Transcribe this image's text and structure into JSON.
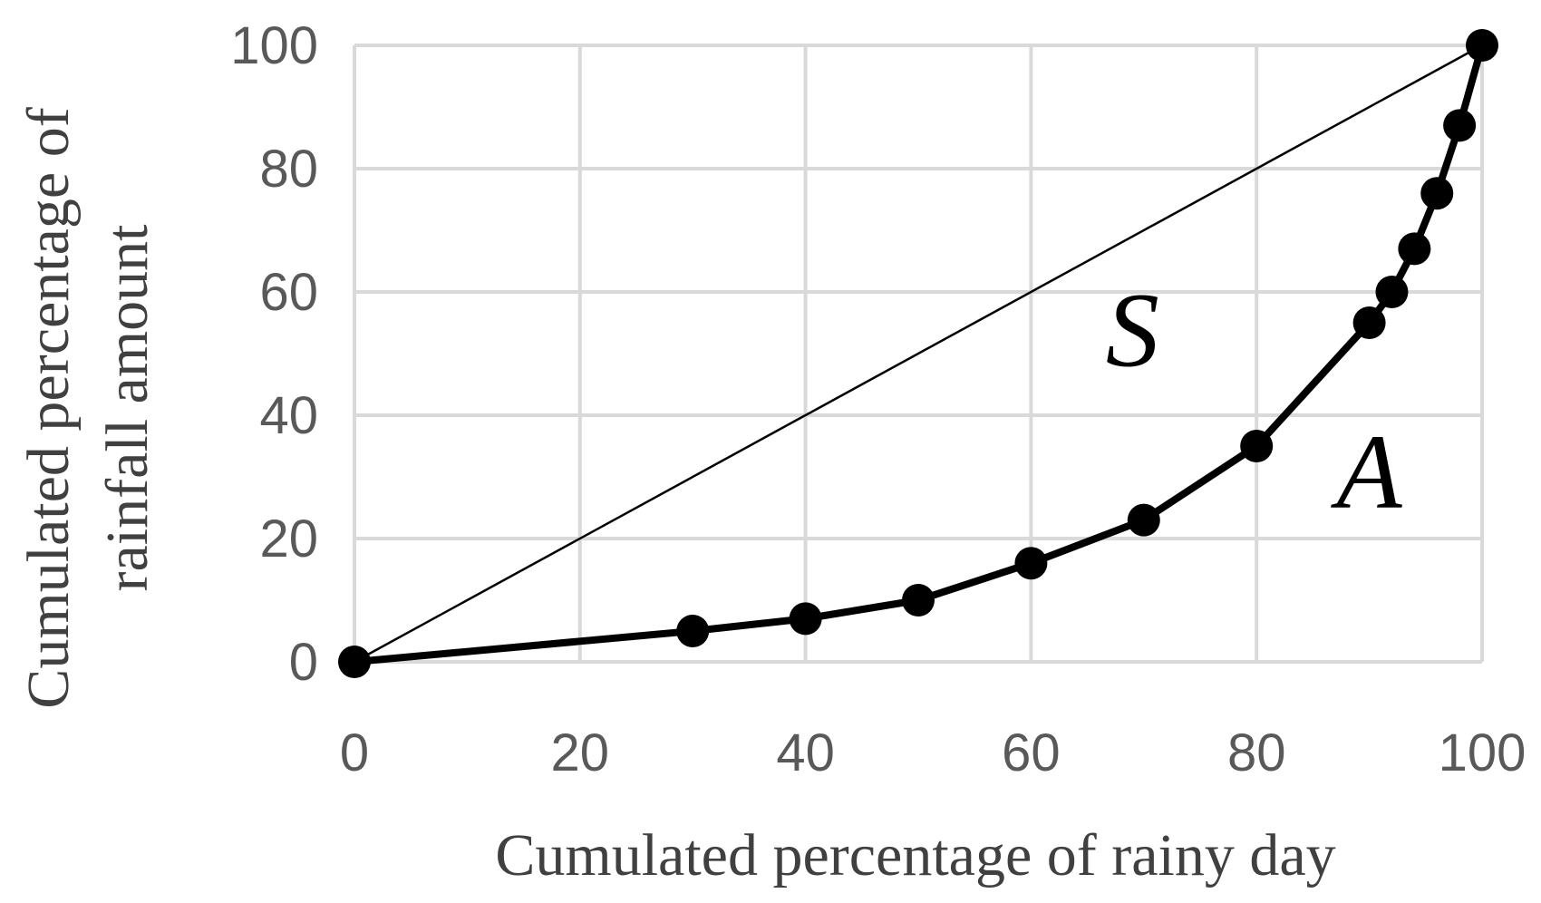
{
  "chart_data": {
    "type": "line",
    "title": "",
    "xlabel": "Cumulated percentage of rainy day",
    "ylabel_lines": [
      "Cumulated percentage of",
      "rainfall amount"
    ],
    "xlim": [
      0,
      100
    ],
    "ylim": [
      0,
      100
    ],
    "xticks": [
      "0",
      "20",
      "40",
      "60",
      "80",
      "100"
    ],
    "yticks": [
      "0",
      "20",
      "40",
      "60",
      "80",
      "100"
    ],
    "grid": true,
    "series": [
      {
        "style": "thin line, no markers",
        "x": [
          0,
          100
        ],
        "y": [
          0,
          100
        ]
      },
      {
        "style": "thick line with circle markers",
        "x": [
          0,
          30,
          40,
          50,
          60,
          70,
          80,
          90,
          92,
          94,
          96,
          98,
          100
        ],
        "y": [
          0,
          5,
          7,
          10,
          16,
          23,
          35,
          55,
          60,
          67,
          76,
          87,
          100
        ]
      }
    ],
    "annotations": [
      {
        "text": "S",
        "x": 69,
        "y": 48
      },
      {
        "text": "A",
        "x": 90,
        "y": 25
      }
    ],
    "colors": {
      "grid": "#d9d9d9",
      "tick_text": "#595959",
      "axis_title_text": "#404040",
      "series": "#000000"
    }
  }
}
